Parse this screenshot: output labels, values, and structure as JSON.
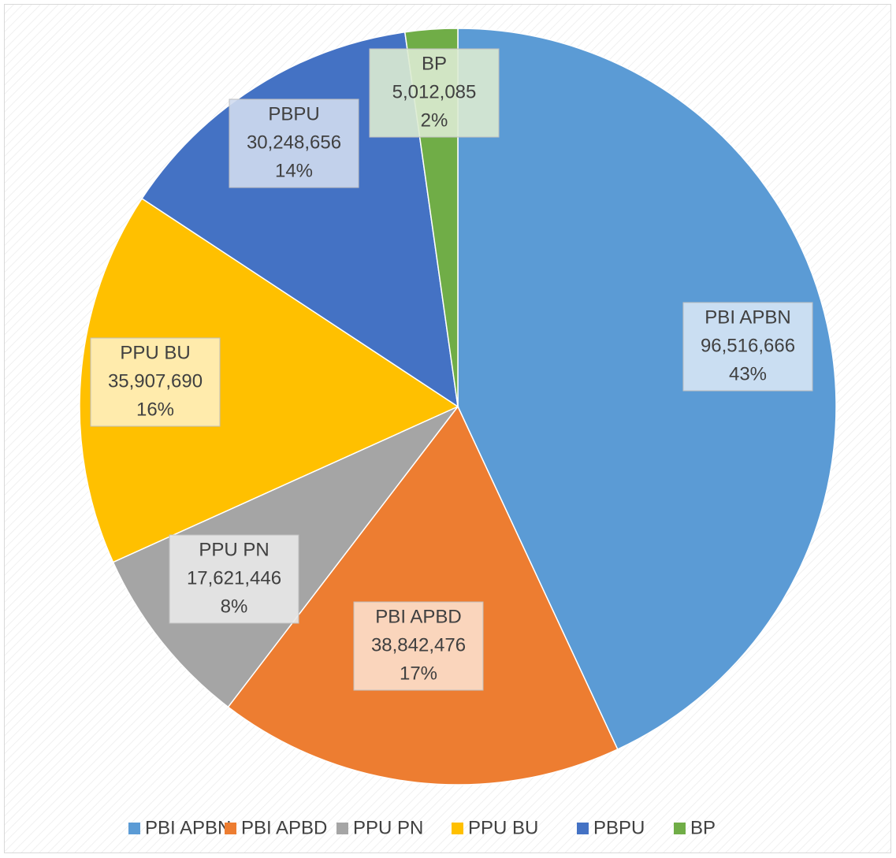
{
  "chart_data": {
    "type": "pie",
    "categories": [
      "PBI APBN",
      "PBI APBD",
      "PPU PN",
      "PPU BU",
      "PBPU",
      "BP"
    ],
    "values": [
      96516666,
      38842476,
      17621446,
      35907690,
      30248656,
      5012085
    ],
    "value_labels": [
      "96,516,666",
      "38,842,476",
      "17,621,446",
      "35,907,690",
      "30,248,656",
      "5,012,085"
    ],
    "percent_labels": [
      "43%",
      "17%",
      "8%",
      "16%",
      "14%",
      "2%"
    ],
    "colors": [
      "#5b9bd5",
      "#ed7d31",
      "#a5a5a5",
      "#ffc000",
      "#4472c4",
      "#70ad47"
    ],
    "legend": "bottom"
  }
}
